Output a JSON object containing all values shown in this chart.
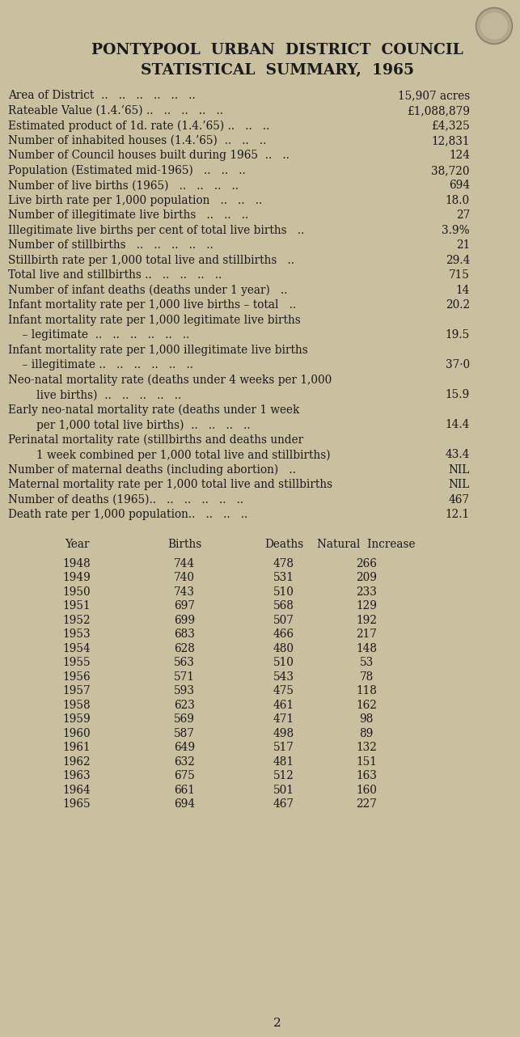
{
  "bg_color": "#c9c0a0",
  "text_color": "#1a1a1a",
  "title1": "PONTYPOOL  URBAN  DISTRICT  COUNCIL",
  "title2": "STATISTICAL  SUMMARY,  1965",
  "left_rows": [
    "Area of District  ..   ..   ..   ..   ..   ..",
    "Rateable Value (1.4.’65) ..   ..   ..   ..   ..",
    "Estimated product of 1d. rate (1.4.’65) ..   ..   ..",
    "Number of inhabited houses (1.4.’65)  ..   ..   ..",
    "Number of Council houses built during 1965  ..   ..",
    "Population (Estimated mid-1965)   ..   ..   ..",
    "Number of live births (1965)   ..   ..   ..   ..",
    "Live birth rate per 1,000 population   ..   ..   ..",
    "Number of illegitimate live births   ..   ..   ..",
    "Illegitimate live births per cent of total live births   ..",
    "Number of stillbirths   ..   ..   ..   ..   ..",
    "Stillbirth rate per 1,000 total live and stillbirths   ..",
    "Total live and stillbirths ..   ..   ..   ..   ..",
    "Number of infant deaths (deaths under 1 year)   ..",
    "Infant mortality rate per 1,000 live births – total   ..",
    "Infant mortality rate per 1,000 legitimate live births",
    "    – legitimate  ..   ..   ..   ..   ..   ..",
    "Infant mortality rate per 1,000 illegitimate live births",
    "    – illegitimate ..   ..   ..   ..   ..   ..",
    "Neo-natal mortality rate (deaths under 4 weeks per 1,000",
    "        live births)  ..   ..   ..   ..   ..",
    "Early neo-natal mortality rate (deaths under 1 week",
    "        per 1,000 total live births)  ..   ..   ..   ..",
    "Perinatal mortality rate (stillbirths and deaths under",
    "        1 week combined per 1,000 total live and stillbirths)",
    "Number of maternal deaths (including abortion)   ..",
    "Maternal mortality rate per 1,000 total live and stillbirths",
    "Number of deaths (1965)..   ..   ..   ..   ..   ..",
    "Death rate per 1,000 population..   ..   ..   .."
  ],
  "right_values": [
    "15,907 acres",
    "£1,088,879",
    "£4,325",
    "12,831",
    "124",
    "38,720",
    "694",
    "18.0",
    "27",
    "3.9%",
    "21",
    "29.4",
    "715",
    "14",
    "20.2",
    null,
    "19.5",
    null,
    "37·0",
    null,
    "15.9",
    null,
    "14.4",
    null,
    "43.4",
    "NIL",
    "NIL",
    "467",
    "12.1"
  ],
  "table_header": [
    "Year",
    "Births",
    "Deaths",
    "Natural  Increase"
  ],
  "table_data": [
    [
      1948,
      744,
      478,
      266
    ],
    [
      1949,
      740,
      531,
      209
    ],
    [
      1950,
      743,
      510,
      233
    ],
    [
      1951,
      697,
      568,
      129
    ],
    [
      1952,
      699,
      507,
      192
    ],
    [
      1953,
      683,
      466,
      217
    ],
    [
      1954,
      628,
      480,
      148
    ],
    [
      1955,
      563,
      510,
      53
    ],
    [
      1956,
      571,
      543,
      78
    ],
    [
      1957,
      593,
      475,
      118
    ],
    [
      1958,
      623,
      461,
      162
    ],
    [
      1959,
      569,
      471,
      98
    ],
    [
      1960,
      587,
      498,
      89
    ],
    [
      1961,
      649,
      517,
      132
    ],
    [
      1962,
      632,
      481,
      151
    ],
    [
      1963,
      675,
      512,
      163
    ],
    [
      1964,
      661,
      501,
      160
    ],
    [
      1965,
      694,
      467,
      227
    ]
  ],
  "page_number": "2"
}
